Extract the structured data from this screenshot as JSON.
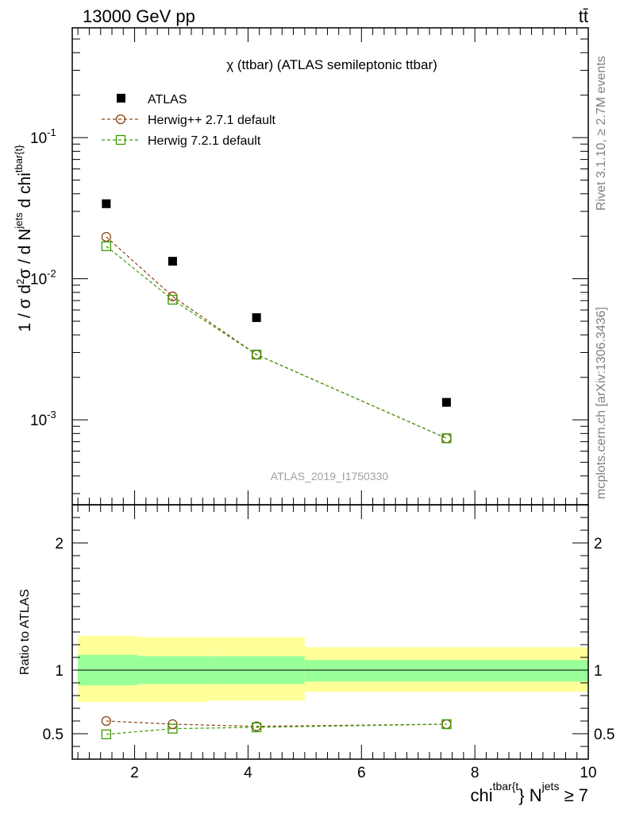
{
  "header": {
    "energy": "13000 GeV pp",
    "process_symbol": "tt̄"
  },
  "side_labels": {
    "rivet": "Rivet 3.1.10, ≥ 2.7M events",
    "source": "mcplots.cern.ch [arXiv:1306.3436]"
  },
  "colors": {
    "atlas": "#000000",
    "herwigpp": "#8B4513",
    "herwig7": "#3A9A00",
    "band_outer": "#FFFF99",
    "band_inner": "#99FF99"
  },
  "chart_data": [
    {
      "type": "scatter",
      "title": "χ (ttbar) (ATLAS semileptonic ttbar)",
      "ylabel": "1 / σ d²σ / d N^jets d chi^tbar{t}",
      "xlabel": "",
      "watermark": "ATLAS_2019_I1750330",
      "y_scale": "log",
      "xlim": [
        0.9,
        10.0
      ],
      "ylim": [
        0.00025,
        0.6
      ],
      "y_tick_labels": [
        "10^-3",
        "10^-2",
        "10^-1"
      ],
      "legend_position": "top-left",
      "x": [
        1.5,
        2.67,
        4.15,
        7.5
      ],
      "series": [
        {
          "name": "ATLAS",
          "values": [
            0.034,
            0.0133,
            0.0053,
            0.00133
          ],
          "style": "data"
        },
        {
          "name": "Herwig++ 2.7.1 default",
          "values": [
            0.0198,
            0.0075,
            0.0029,
            0.00074
          ],
          "style": "circle"
        },
        {
          "name": "Herwig 7.2.1 default",
          "values": [
            0.017,
            0.0071,
            0.0029,
            0.00074
          ],
          "style": "square"
        }
      ]
    },
    {
      "type": "line",
      "ylabel": "Ratio to ATLAS",
      "xlabel": "chi^tbar{t} N^jets ≥ 7",
      "xlim": [
        0.9,
        10.0
      ],
      "ylim": [
        0.3,
        2.3
      ],
      "x_tick_labels": [
        "2",
        "4",
        "6",
        "8",
        "10"
      ],
      "y_tick_labels": [
        "0.5",
        "1",
        "2"
      ],
      "reference_line": 1.0,
      "bins": [
        {
          "x_low": 1.0,
          "x_high": 2.05,
          "inner": [
            0.88,
            1.12
          ],
          "outer": [
            0.75,
            1.27
          ]
        },
        {
          "x_low": 2.05,
          "x_high": 3.3,
          "inner": [
            0.89,
            1.11
          ],
          "outer": [
            0.75,
            1.26
          ]
        },
        {
          "x_low": 3.3,
          "x_high": 5.0,
          "inner": [
            0.89,
            1.11
          ],
          "outer": [
            0.76,
            1.26
          ]
        },
        {
          "x_low": 5.0,
          "x_high": 10.0,
          "inner": [
            0.91,
            1.08
          ],
          "outer": [
            0.83,
            1.18
          ]
        }
      ],
      "x": [
        1.5,
        2.67,
        4.15,
        7.5
      ],
      "series": [
        {
          "name": "Herwig++ 2.7.1 default",
          "values": [
            0.6,
            0.575,
            0.558,
            0.575
          ],
          "style": "circle"
        },
        {
          "name": "Herwig 7.2.1 default",
          "values": [
            0.495,
            0.54,
            0.55,
            0.575
          ],
          "style": "square"
        }
      ]
    }
  ]
}
